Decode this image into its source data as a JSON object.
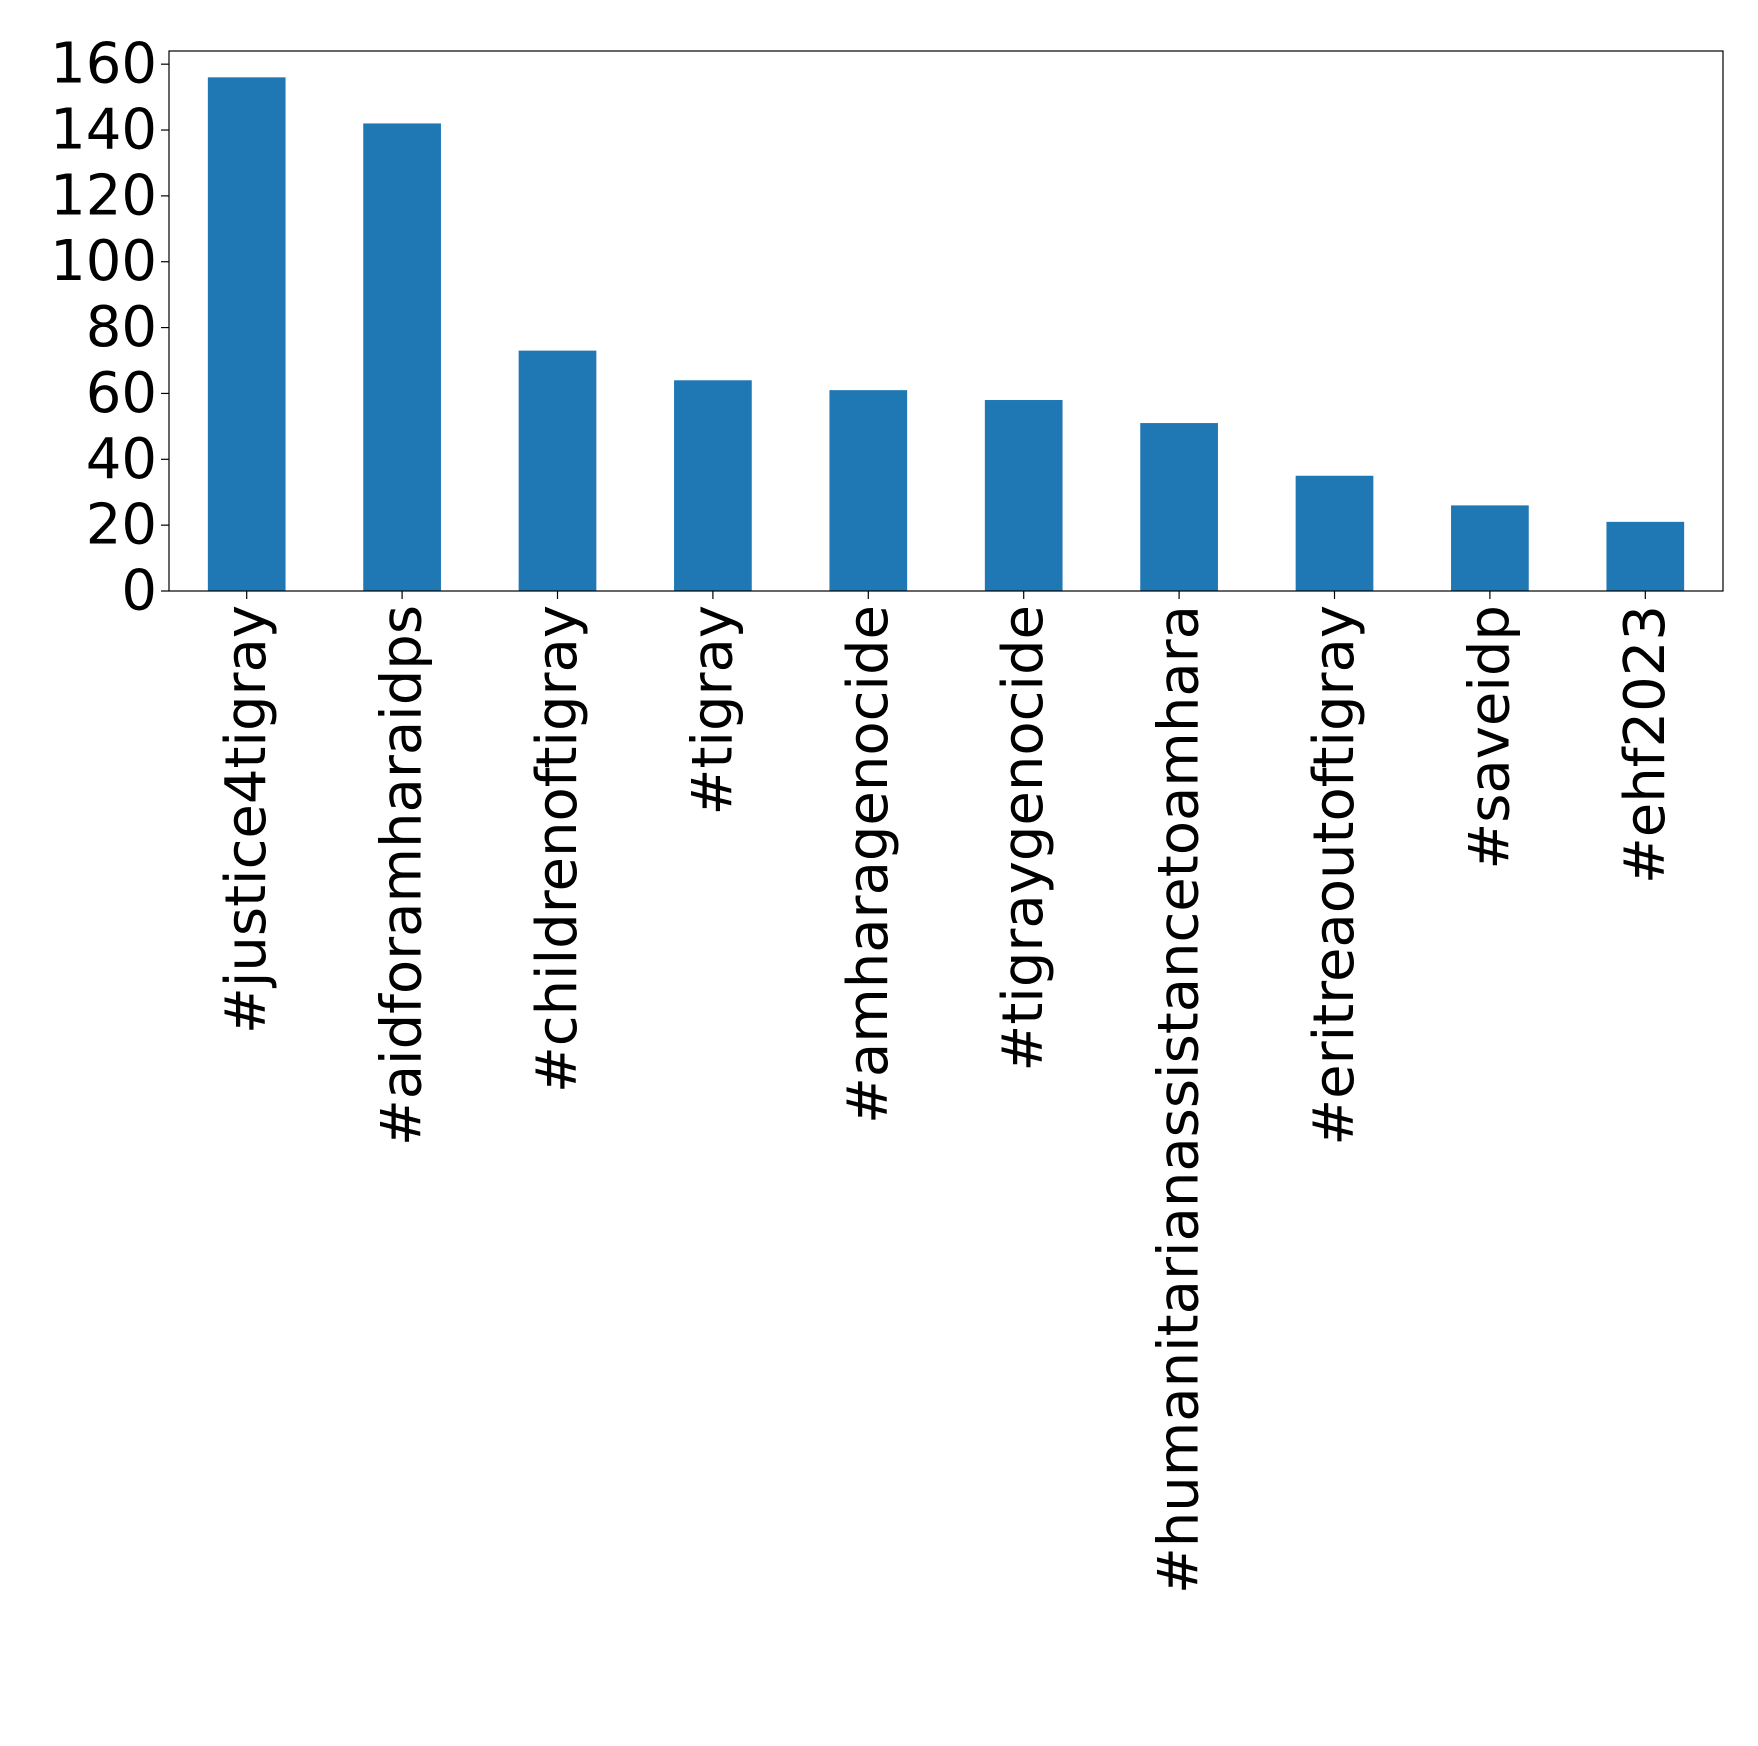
{
  "chart_data": {
    "type": "bar",
    "title": "",
    "xlabel": "",
    "ylabel": "",
    "categories": [
      "#justice4tigray",
      "#aidforamharaidps",
      "#childrenoftigray",
      "#tigray",
      "#amharagenocide",
      "#tigraygenocide",
      "#humanitarianassistancetoamhara",
      "#eritreaoutoftigray",
      "#saveidp",
      "#ehf2023"
    ],
    "values": [
      156,
      142,
      73,
      64,
      61,
      58,
      51,
      35,
      26,
      21
    ],
    "ylim": [
      0,
      164
    ],
    "yticks": [
      0,
      20,
      40,
      60,
      80,
      100,
      120,
      140,
      160
    ],
    "bar_color": "#1f77b4",
    "grid": false,
    "legend": "none"
  }
}
